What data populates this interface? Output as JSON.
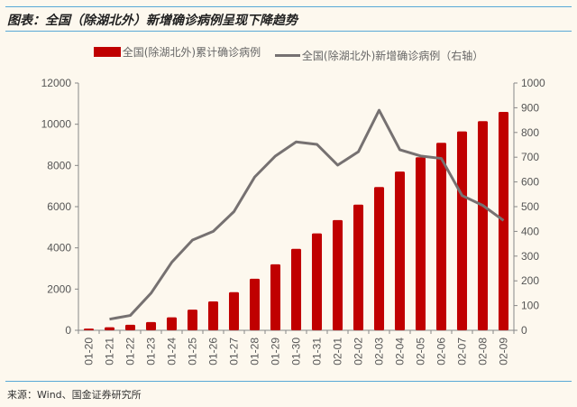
{
  "title": "图表：全国（除湖北外）新增确诊病例呈现下降趋势",
  "footer": "来源：Wind、国金证券研究所",
  "chart_data": {
    "type": "bar+line",
    "title": "图表：全国（除湖北外）新增确诊病例呈现下降趋势",
    "categories": [
      "01-20",
      "01-21",
      "01-22",
      "01-23",
      "01-24",
      "01-25",
      "01-26",
      "01-27",
      "01-28",
      "01-29",
      "01-30",
      "01-31",
      "02-01",
      "02-02",
      "02-03",
      "02-04",
      "02-05",
      "02-06",
      "02-07",
      "02-08",
      "02-09"
    ],
    "series": [
      {
        "name": "全国(除湖北外)累计确诊病例",
        "type": "bar",
        "axis": "left",
        "color": "#c00000",
        "values": [
          80,
          150,
          270,
          400,
          630,
          1000,
          1400,
          1850,
          2500,
          3200,
          3950,
          4700,
          5350,
          6100,
          6950,
          7700,
          8400,
          9100,
          9650,
          10150,
          10600
        ]
      },
      {
        "name": "全国(除湖北外)新增确诊病例（右轴）",
        "type": "line",
        "axis": "right",
        "color": "#767171",
        "values": [
          null,
          45,
          60,
          150,
          275,
          365,
          400,
          480,
          620,
          705,
          762,
          752,
          668,
          722,
          890,
          730,
          705,
          695,
          545,
          505,
          444
        ]
      }
    ],
    "ylim_left": [
      0,
      12000
    ],
    "yticks_left": [
      0,
      2000,
      4000,
      6000,
      8000,
      10000,
      12000
    ],
    "ylim_right": [
      0,
      1000
    ],
    "yticks_right": [
      0,
      100,
      200,
      300,
      400,
      500,
      600,
      700,
      800,
      900,
      1000
    ],
    "legend": "top",
    "grid": false
  }
}
